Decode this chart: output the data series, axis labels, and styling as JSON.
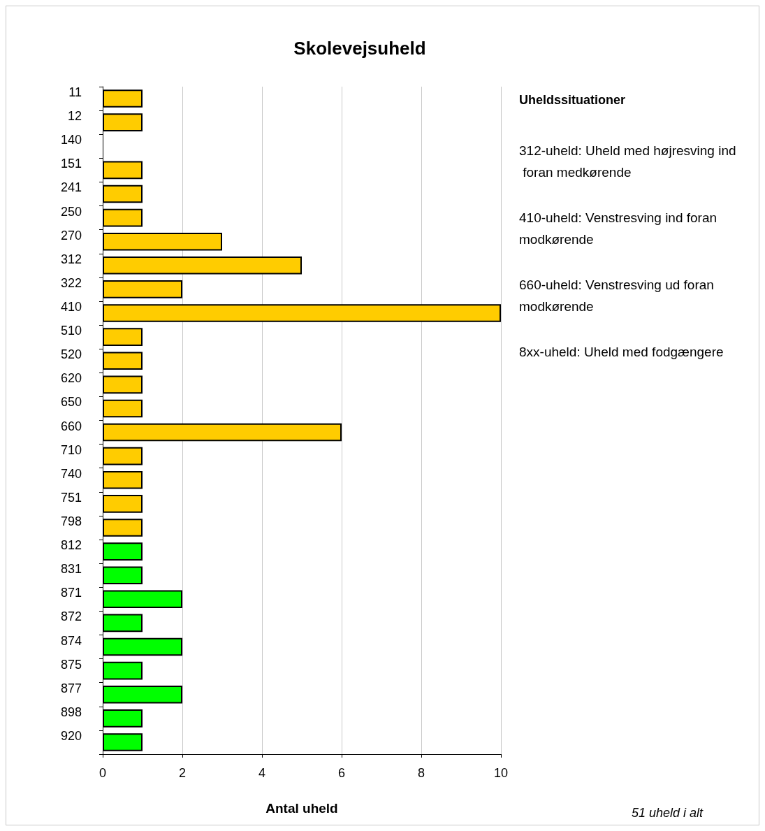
{
  "chart_data": {
    "type": "bar",
    "orientation": "horizontal",
    "title": "Skolevejsuheld",
    "xlabel": "Antal uheld",
    "categories": [
      "11",
      "12",
      "140",
      "151",
      "241",
      "250",
      "270",
      "312",
      "322",
      "410",
      "510",
      "520",
      "620",
      "650",
      "660",
      "710",
      "740",
      "751",
      "798",
      "812",
      "831",
      "871",
      "872",
      "874",
      "875",
      "877",
      "898",
      "920"
    ],
    "values": [
      1,
      1,
      0,
      1,
      1,
      1,
      3,
      5,
      2,
      10,
      1,
      1,
      1,
      1,
      6,
      1,
      1,
      1,
      1,
      1,
      1,
      2,
      1,
      2,
      1,
      2,
      1,
      1
    ],
    "colors": [
      "#ffcc00",
      "#ffcc00",
      "#ffcc00",
      "#ffcc00",
      "#ffcc00",
      "#ffcc00",
      "#ffcc00",
      "#ffcc00",
      "#ffcc00",
      "#ffcc00",
      "#ffcc00",
      "#ffcc00",
      "#ffcc00",
      "#ffcc00",
      "#ffcc00",
      "#ffcc00",
      "#ffcc00",
      "#ffcc00",
      "#ffcc00",
      "#00ff00",
      "#00ff00",
      "#00ff00",
      "#00ff00",
      "#00ff00",
      "#00ff00",
      "#00ff00",
      "#00ff00",
      "#00ff00"
    ],
    "xlim": [
      0,
      10
    ],
    "xticks": [
      0,
      2,
      4,
      6,
      8,
      10
    ],
    "grid": "x",
    "annotations": [
      "Uheldssituationer",
      "312-uheld: Uheld med højresving ind foran medkørende",
      "410-uheld: Venstresving ind foran modkørende",
      "660-uheld: Venstresving ud foran modkørende",
      "8xx-uheld: Uheld med fodgængere",
      "51 uheld i alt"
    ]
  }
}
